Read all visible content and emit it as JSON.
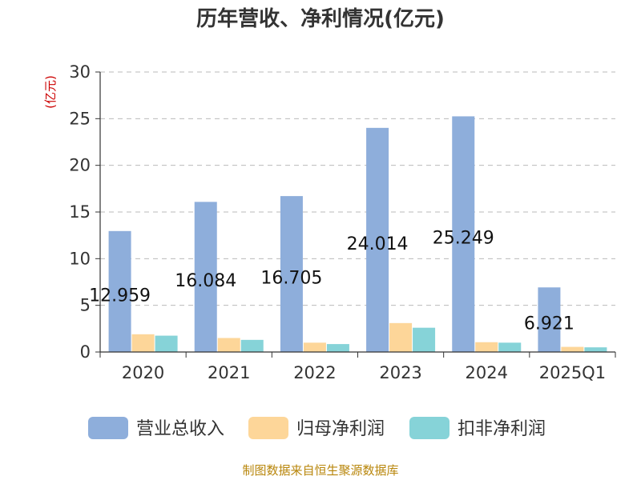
{
  "chart_data": {
    "type": "bar",
    "title": "历年营收、净利情况(亿元)",
    "ylabel": "(亿元)",
    "xlabel": "",
    "categories": [
      "2020",
      "2021",
      "2022",
      "2023",
      "2024",
      "2025Q1"
    ],
    "series": [
      {
        "name": "营业总收入",
        "color": "#8eaedb",
        "values": [
          12.959,
          16.084,
          16.705,
          24.014,
          25.249,
          6.921
        ]
      },
      {
        "name": "归母净利润",
        "color": "#fdd699",
        "values": [
          1.9,
          1.5,
          1.0,
          3.1,
          1.05,
          0.55
        ]
      },
      {
        "name": "扣非净利润",
        "color": "#86d3d8",
        "values": [
          1.75,
          1.3,
          0.85,
          2.6,
          1.0,
          0.5
        ]
      }
    ],
    "data_labels": [
      "12.959",
      "16.084",
      "16.705",
      "24.014",
      "25.249",
      "6.921"
    ],
    "ylim": [
      0,
      30
    ],
    "yticks": [
      0,
      5,
      10,
      15,
      20,
      25,
      30
    ],
    "grid": true,
    "legend_position": "bottom"
  },
  "source_text": "制图数据来自恒生聚源数据库"
}
